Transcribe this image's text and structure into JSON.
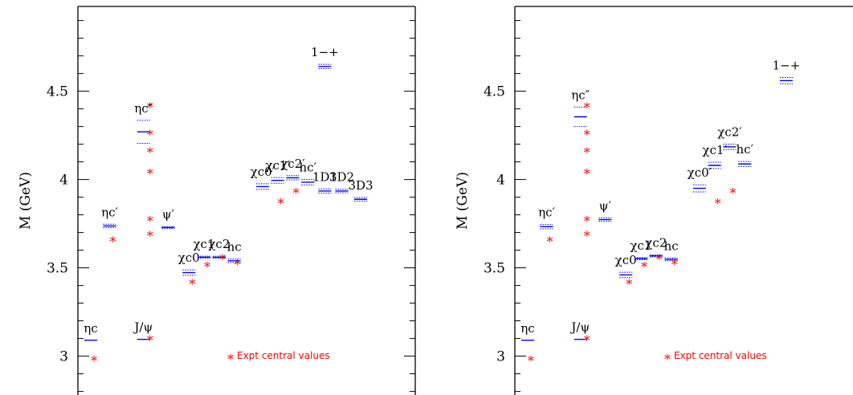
{
  "chart_data": [
    {
      "type": "scatter",
      "title": "",
      "ylabel": "M (GeV)",
      "ylim": [
        2.78,
        4.98
      ],
      "yticks": [
        3,
        3.5,
        4,
        4.5
      ],
      "ytick_labels": [
        "3",
        "3.5",
        "4",
        "4.5"
      ],
      "legend_label": "Expt central values",
      "legend_marker": "*",
      "colors": {
        "lattice": "#0000ff",
        "experiment": "#ff0000"
      },
      "states": [
        {
          "label": "ηc",
          "slot": 1,
          "mass": 3.09,
          "err": 0.0,
          "expt": [
            2.98
          ]
        },
        {
          "label": "ηc′",
          "slot": 2,
          "mass": 3.737,
          "err": 0.01,
          "expt": [
            3.654
          ]
        },
        {
          "label": "ηc″",
          "slot": 3.8,
          "mass": 4.27,
          "err": 0.065,
          "expt": [
            3.686,
            3.77,
            4.04,
            4.16,
            4.26,
            4.415
          ]
        },
        {
          "label": "J/ψ",
          "slot": 3.8,
          "mass": 3.095,
          "err": 0.0,
          "expt": [
            3.097
          ]
        },
        {
          "label": "ψ′",
          "slot": 5.1,
          "mass": 3.728,
          "err": 0.006,
          "expt": []
        },
        {
          "label": "χc0",
          "slot": 6.2,
          "mass": 3.473,
          "err": 0.015,
          "expt": [
            3.415
          ]
        },
        {
          "label": "χc1",
          "slot": 7,
          "mass": 3.56,
          "err": 0.006,
          "expt": [
            3.511
          ]
        },
        {
          "label": "χc2",
          "slot": 7.8,
          "mass": 3.56,
          "err": 0.006,
          "expt": [
            3.556
          ]
        },
        {
          "label": "hc",
          "slot": 8.6,
          "mass": 3.54,
          "err": 0.01,
          "expt": [
            3.526
          ]
        },
        {
          "label": "χc0′",
          "slot": 10.1,
          "mass": 3.96,
          "err": 0.016,
          "expt": []
        },
        {
          "label": "χc1′",
          "slot": 10.9,
          "mass": 3.995,
          "err": 0.016,
          "expt": [
            3.872
          ]
        },
        {
          "label": "χc2′",
          "slot": 11.7,
          "mass": 4.01,
          "err": 0.012,
          "expt": [
            3.93
          ]
        },
        {
          "label": "hc′",
          "slot": 12.5,
          "mass": 3.985,
          "err": 0.016,
          "expt": []
        },
        {
          "label": "1D1",
          "slot": 13.4,
          "mass": 3.935,
          "err": 0.012,
          "expt": []
        },
        {
          "label": "3D2",
          "slot": 14.3,
          "mass": 3.935,
          "err": 0.01,
          "expt": []
        },
        {
          "label": "3D3",
          "slot": 15.3,
          "mass": 3.888,
          "err": 0.01,
          "expt": []
        },
        {
          "label": "1−+",
          "slot": 13.4,
          "mass": 4.64,
          "err": 0.012,
          "expt": []
        }
      ]
    },
    {
      "type": "scatter",
      "title": "",
      "ylabel": "M (GeV)",
      "ylim": [
        2.78,
        4.98
      ],
      "yticks": [
        3,
        3.5,
        4,
        4.5
      ],
      "ytick_labels": [
        "3",
        "3.5",
        "4",
        "4.5"
      ],
      "legend_label": "Expt central values",
      "legend_marker": "*",
      "colors": {
        "lattice": "#0000ff",
        "experiment": "#ff0000"
      },
      "states": [
        {
          "label": "ηc",
          "slot": 1,
          "mass": 3.09,
          "err": 0.0,
          "expt": [
            2.98
          ]
        },
        {
          "label": "ηc′",
          "slot": 2,
          "mass": 3.733,
          "err": 0.012,
          "expt": [
            3.654
          ]
        },
        {
          "label": "ηc″",
          "slot": 3.8,
          "mass": 4.355,
          "err": 0.055,
          "expt": [
            3.686,
            3.77,
            4.04,
            4.16,
            4.26,
            4.415
          ]
        },
        {
          "label": "J/ψ",
          "slot": 3.8,
          "mass": 3.095,
          "err": 0.0,
          "expt": [
            3.097
          ]
        },
        {
          "label": "ψ′",
          "slot": 5.1,
          "mass": 3.773,
          "err": 0.01,
          "expt": []
        },
        {
          "label": "χc0",
          "slot": 6.2,
          "mass": 3.46,
          "err": 0.015,
          "expt": [
            3.415
          ]
        },
        {
          "label": "χc1",
          "slot": 7,
          "mass": 3.552,
          "err": 0.006,
          "expt": [
            3.511
          ]
        },
        {
          "label": "χc2",
          "slot": 7.8,
          "mass": 3.568,
          "err": 0.006,
          "expt": [
            3.556
          ]
        },
        {
          "label": "hc",
          "slot": 8.6,
          "mass": 3.548,
          "err": 0.008,
          "expt": [
            3.526
          ]
        },
        {
          "label": "χc0′",
          "slot": 10.1,
          "mass": 3.95,
          "err": 0.02,
          "expt": []
        },
        {
          "label": "χc1′",
          "slot": 10.9,
          "mass": 4.08,
          "err": 0.018,
          "expt": [
            3.872
          ]
        },
        {
          "label": "χc2′",
          "slot": 11.7,
          "mass": 4.185,
          "err": 0.015,
          "expt": [
            3.93
          ]
        },
        {
          "label": "hc′",
          "slot": 12.5,
          "mass": 4.088,
          "err": 0.014,
          "expt": []
        },
        {
          "label": "1−+",
          "slot": 14.7,
          "mass": 4.56,
          "err": 0.018,
          "expt": []
        }
      ]
    }
  ]
}
